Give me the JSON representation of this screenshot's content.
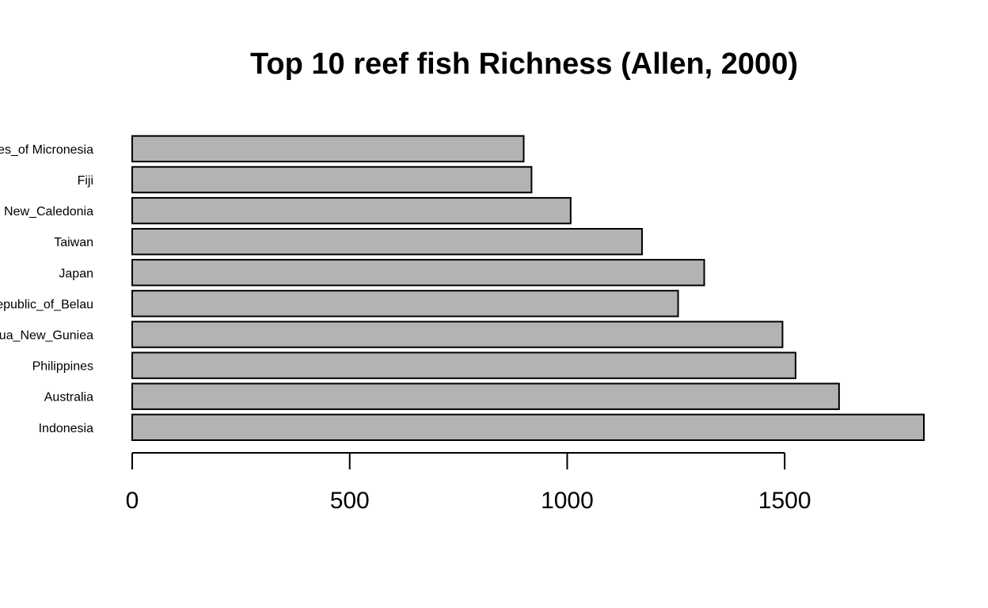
{
  "chart_data": {
    "type": "bar",
    "orientation": "horizontal",
    "title": "Top 10 reef fish Richness (Allen, 2000)",
    "xlabel": "",
    "ylabel": "",
    "categories": [
      "Indonesia",
      "Australia",
      "Philippines",
      "Papua_New_Guniea",
      "Republic_of_Belau",
      "Japan",
      "Taiwan",
      "New_Caledonia",
      "Fiji",
      "Federated_States_of Micronesia"
    ],
    "values": [
      1820,
      1625,
      1525,
      1495,
      1255,
      1315,
      1172,
      1008,
      918,
      900
    ],
    "xlim": [
      0,
      1820
    ],
    "xticks": [
      0,
      500,
      1000,
      1500
    ],
    "bar_color": "#b3b3b3",
    "grid": false,
    "legend": "none"
  }
}
